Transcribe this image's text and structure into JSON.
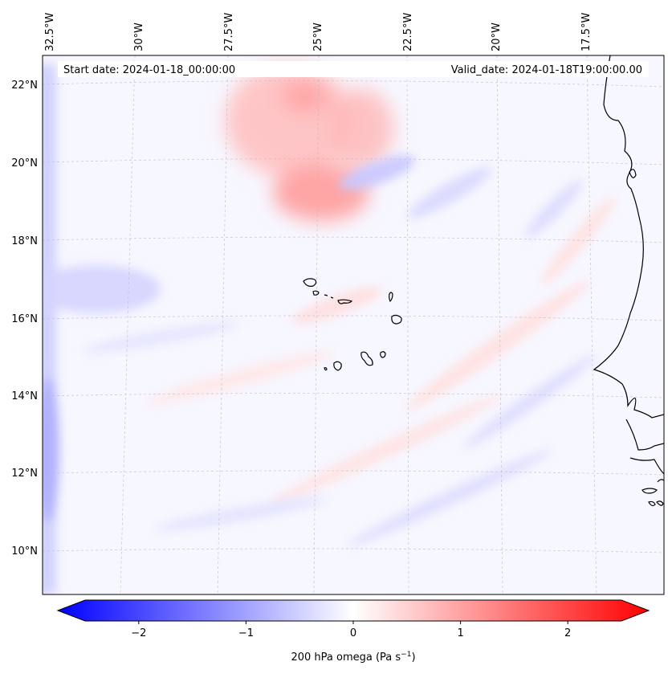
{
  "header": {
    "start_date": "Start date: 2024-01-18_00:00:00",
    "valid_date": "Valid_date: 2024-01-18T19:00:00.00"
  },
  "longitude_labels": [
    "32.5°W",
    "30°W",
    "27.5°W",
    "25°W",
    "22.5°W",
    "20°W",
    "17.5°W"
  ],
  "latitude_labels": [
    "22°N",
    "20°N",
    "18°N",
    "16°N",
    "14°N",
    "12°N",
    "10°N"
  ],
  "colorbar": {
    "ticks": [
      {
        "value": -2,
        "label": "−2"
      },
      {
        "value": -1,
        "label": "−1"
      },
      {
        "value": 0,
        "label": "0"
      },
      {
        "value": 1,
        "label": "1"
      },
      {
        "value": 2,
        "label": "2"
      }
    ],
    "vmin": -2.5,
    "vmax": 2.5,
    "label_main": "200 hPa omega (Pa s",
    "label_sup": "−1",
    "label_end": ")",
    "colors": {
      "negative": "#0000ff",
      "zero": "#ffffff",
      "positive": "#ff0000"
    }
  },
  "chart_data": {
    "type": "heatmap",
    "title": "",
    "variable": "200 hPa omega",
    "units": "Pa s−1",
    "color_range": [
      -2.5,
      2.5
    ],
    "colormap": "bwr",
    "lon_ticks": [
      -32.5,
      -30,
      -27.5,
      -25,
      -22.5,
      -20,
      -17.5
    ],
    "lat_ticks": [
      22,
      20,
      18,
      16,
      14,
      12,
      10
    ],
    "features": {
      "positive_max_region": "around 19-22°N, 27-24°W",
      "negative_region": "western edge near 32.5°W and scattered bands",
      "islands": "Cape Verde Islands near 15-17°N, 25-22.5°W",
      "coastline": "West Africa coast on right edge"
    }
  }
}
